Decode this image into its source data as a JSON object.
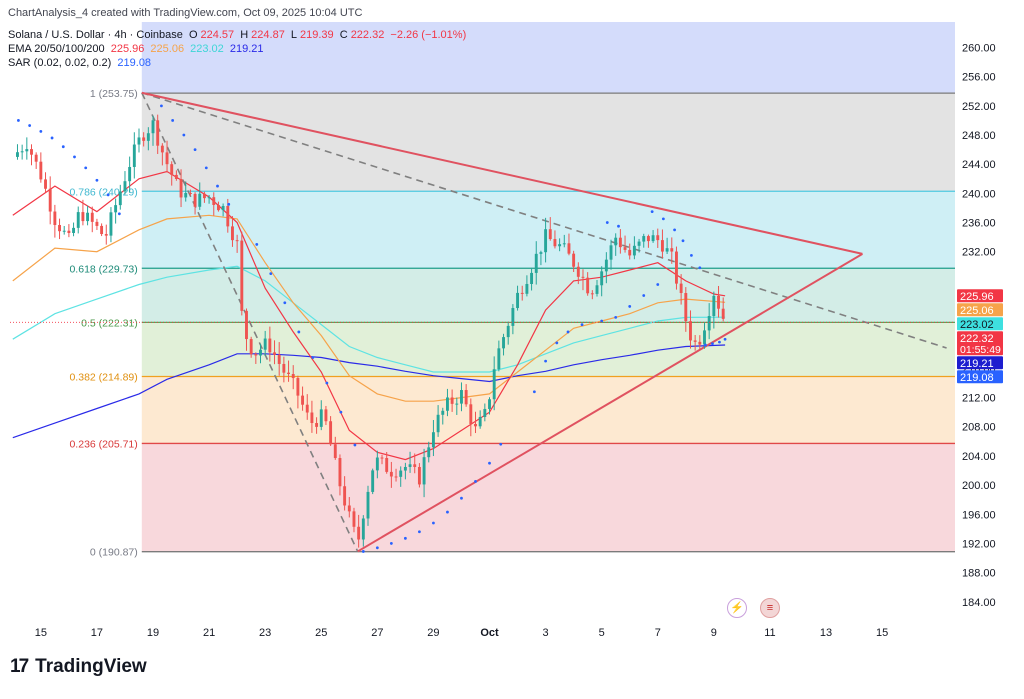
{
  "header": {
    "credit": "ChartAnalysis_4 created with TradingView.com, Oct 09, 2025 10:04 UTC",
    "symbol": "Solana / U.S. Dollar · 4h · Coinbase",
    "o_label": "O",
    "o_value": "224.57",
    "h_label": "H",
    "h_value": "224.87",
    "l_label": "L",
    "l_value": "219.39",
    "c_label": "C",
    "c_value": "222.32",
    "change": "−2.26 (−1.01%)",
    "ema_label": "EMA 20/50/100/200",
    "ema_values": [
      "225.96",
      "225.06",
      "223.02",
      "219.21"
    ],
    "sar_label": "SAR (0.02, 0.02, 0.2)",
    "sar_value": "219.08"
  },
  "colors": {
    "up": "#26a69a",
    "down": "#ef5350",
    "ema20": "#f23645",
    "ema50": "#f6a34a",
    "ema100": "#5ee3e3",
    "ema200": "#2a2ae8",
    "sar": "#2962ff",
    "triangle": "#e05260",
    "fib_dash": "#808080"
  },
  "fib_levels": [
    {
      "label": "1 (253.75)",
      "value": 253.75,
      "line": "#7b7b7b",
      "text": "#787b86"
    },
    {
      "label": "0.786 (240.29)",
      "value": 240.29,
      "line": "#4fc9e0",
      "text": "#40b8d0"
    },
    {
      "label": "0.618 (229.73)",
      "value": 229.73,
      "line": "#1f9e8a",
      "text": "#1c8a77"
    },
    {
      "label": "0.5 (222.31)",
      "value": 222.31,
      "line": "#5aa85a",
      "text": "#4c9a4c"
    },
    {
      "label": "0.382 (214.89)",
      "value": 214.89,
      "line": "#f0a020",
      "text": "#e09010"
    },
    {
      "label": "0.236 (205.71)",
      "value": 205.71,
      "line": "#e04848",
      "text": "#d83838"
    },
    {
      "label": "0 (190.87)",
      "value": 190.87,
      "line": "#7b7b7b",
      "text": "#787b86"
    }
  ],
  "fib_zones": [
    {
      "from": 253.75,
      "to": 263.5,
      "color": "#d4dcfb"
    },
    {
      "from": 240.29,
      "to": 253.75,
      "color": "#e3e3e3"
    },
    {
      "from": 229.73,
      "to": 240.29,
      "color": "#cfeff5"
    },
    {
      "from": 222.31,
      "to": 229.73,
      "color": "#d3ede7"
    },
    {
      "from": 214.89,
      "to": 222.31,
      "color": "#e1f0d8"
    },
    {
      "from": 205.71,
      "to": 214.89,
      "color": "#fde9d1"
    },
    {
      "from": 190.87,
      "to": 205.71,
      "color": "#f8d8dc"
    }
  ],
  "price_badges": [
    {
      "text": "225.96",
      "value": 225.96,
      "bg": "#f23645",
      "fg": "#ffffff"
    },
    {
      "text": "225.06",
      "value": 225.06,
      "bg": "#f6a34a",
      "fg": "#ffffff"
    },
    {
      "text": "223.02",
      "value": 223.02,
      "bg": "#3ee0e0",
      "fg": "#131722"
    },
    {
      "text": "222.32",
      "sub": "01:55:49",
      "value": 222.32,
      "bg": "#f23645",
      "fg": "#ffffff"
    },
    {
      "text": "219.21",
      "value": 219.21,
      "bg": "#1d1dcf",
      "fg": "#ffffff"
    },
    {
      "text": "219.08",
      "value": 219.08,
      "bg": "#2962ff",
      "fg": "#ffffff"
    }
  ],
  "chart_data": {
    "type": "candlestick",
    "title": "Solana / U.S. Dollar · 4h · Coinbase",
    "y_ticks": [
      260,
      256,
      252,
      248,
      244,
      240,
      236,
      232,
      228,
      224,
      220,
      216,
      212,
      208,
      204,
      200,
      196,
      192,
      188,
      184
    ],
    "y_tick_labels": [
      "260.00",
      "256.00",
      "252.00",
      "248.00",
      "244.00",
      "240.00",
      "236.00",
      "232.00",
      "",
      "",
      "",
      "216.00",
      "212.00",
      "208.00",
      "204.00",
      "200.00",
      "196.00",
      "192.00",
      "188.00",
      "184.00"
    ],
    "ylim": [
      181.5,
      263.5
    ],
    "x_ticks": [
      {
        "label": "15",
        "day": 15
      },
      {
        "label": "17",
        "day": 17
      },
      {
        "label": "19",
        "day": 19
      },
      {
        "label": "21",
        "day": 21
      },
      {
        "label": "23",
        "day": 23
      },
      {
        "label": "25",
        "day": 25
      },
      {
        "label": "27",
        "day": 27
      },
      {
        "label": "29",
        "day": 29
      },
      {
        "label": "Oct",
        "day": 31,
        "bold": true
      },
      {
        "label": "3",
        "day": 33
      },
      {
        "label": "5",
        "day": 35
      },
      {
        "label": "7",
        "day": 37
      },
      {
        "label": "9",
        "day": 39
      },
      {
        "label": "11",
        "day": 41
      },
      {
        "label": "13",
        "day": 43
      },
      {
        "label": "15",
        "day": 45
      }
    ],
    "xlim": [
      13.9,
      47.6
    ],
    "day_unit": "days counted from September 1 2025 (31 = October 1)",
    "close_path": [
      [
        14.0,
        245.0
      ],
      [
        14.5,
        247.0
      ],
      [
        15.0,
        242.5
      ],
      [
        15.5,
        236.5
      ],
      [
        16.0,
        233.5
      ],
      [
        16.4,
        237.5
      ],
      [
        16.8,
        236.0
      ],
      [
        17.3,
        234.0
      ],
      [
        17.8,
        240.0
      ],
      [
        18.2,
        244.5
      ],
      [
        18.6,
        248.0
      ],
      [
        19.0,
        249.5
      ],
      [
        19.4,
        245.0
      ],
      [
        19.9,
        240.5
      ],
      [
        20.4,
        239.0
      ],
      [
        21.0,
        239.5
      ],
      [
        21.5,
        238.0
      ],
      [
        22.0,
        233.0
      ],
      [
        22.2,
        221.5
      ],
      [
        22.6,
        218.0
      ],
      [
        23.1,
        219.5
      ],
      [
        23.6,
        216.0
      ],
      [
        24.1,
        213.0
      ],
      [
        24.6,
        208.5
      ],
      [
        25.1,
        209.5
      ],
      [
        25.6,
        201.0
      ],
      [
        26.0,
        195.5
      ],
      [
        26.3,
        192.0
      ],
      [
        26.6,
        198.5
      ],
      [
        26.9,
        203.5
      ],
      [
        27.5,
        202.0
      ],
      [
        28.0,
        202.5
      ],
      [
        28.5,
        201.0
      ],
      [
        29.0,
        208.0
      ],
      [
        29.5,
        211.0
      ],
      [
        30.0,
        212.5
      ],
      [
        30.5,
        207.5
      ],
      [
        30.9,
        210.0
      ],
      [
        31.2,
        217.0
      ],
      [
        31.6,
        221.5
      ],
      [
        32.0,
        226.0
      ],
      [
        32.5,
        230.0
      ],
      [
        33.0,
        234.0
      ],
      [
        33.6,
        232.5
      ],
      [
        34.1,
        230.0
      ],
      [
        34.6,
        226.5
      ],
      [
        35.0,
        229.5
      ],
      [
        35.5,
        234.0
      ],
      [
        36.0,
        231.5
      ],
      [
        36.6,
        234.0
      ],
      [
        37.1,
        233.5
      ],
      [
        37.5,
        231.0
      ],
      [
        37.8,
        226.0
      ],
      [
        38.1,
        221.0
      ],
      [
        38.4,
        219.0
      ],
      [
        38.7,
        222.5
      ],
      [
        39.0,
        226.5
      ],
      [
        39.4,
        222.32
      ]
    ],
    "sar_points": [
      [
        14.2,
        250.0
      ],
      [
        14.6,
        249.3
      ],
      [
        15.0,
        248.5
      ],
      [
        15.4,
        247.6
      ],
      [
        15.8,
        246.4
      ],
      [
        16.2,
        245.0
      ],
      [
        16.6,
        243.5
      ],
      [
        17.0,
        241.8
      ],
      [
        17.4,
        239.8
      ],
      [
        17.8,
        237.2
      ],
      [
        19.3,
        252.0
      ],
      [
        19.7,
        250.0
      ],
      [
        20.1,
        248.0
      ],
      [
        20.5,
        246.0
      ],
      [
        20.9,
        243.5
      ],
      [
        21.3,
        241.0
      ],
      [
        21.7,
        238.5
      ],
      [
        22.7,
        233.0
      ],
      [
        23.2,
        229.0
      ],
      [
        23.7,
        225.0
      ],
      [
        24.2,
        221.0
      ],
      [
        24.7,
        217.5
      ],
      [
        25.2,
        214.0
      ],
      [
        25.7,
        210.0
      ],
      [
        26.2,
        205.5
      ],
      [
        26.5,
        190.9
      ],
      [
        27.0,
        191.4
      ],
      [
        27.5,
        192.0
      ],
      [
        28.0,
        192.7
      ],
      [
        28.5,
        193.6
      ],
      [
        29.0,
        194.8
      ],
      [
        29.5,
        196.3
      ],
      [
        30.0,
        198.2
      ],
      [
        30.5,
        200.5
      ],
      [
        31.0,
        203.0
      ],
      [
        31.4,
        205.6
      ],
      [
        32.6,
        212.8
      ],
      [
        33.0,
        217.0
      ],
      [
        33.4,
        219.5
      ],
      [
        33.8,
        221.0
      ],
      [
        34.3,
        222.0
      ],
      [
        35.0,
        222.5
      ],
      [
        35.5,
        223.0
      ],
      [
        36.0,
        224.5
      ],
      [
        36.5,
        226.0
      ],
      [
        37.0,
        227.5
      ],
      [
        35.2,
        236.0
      ],
      [
        35.6,
        235.5
      ],
      [
        36.8,
        237.5
      ],
      [
        37.2,
        236.5
      ],
      [
        37.6,
        235.0
      ],
      [
        37.9,
        233.5
      ],
      [
        38.2,
        231.5
      ],
      [
        38.5,
        229.8
      ],
      [
        38.7,
        219.2
      ],
      [
        38.95,
        219.4
      ],
      [
        39.2,
        219.6
      ],
      [
        39.4,
        220.0
      ]
    ],
    "ema20": [
      [
        14.0,
        237.0
      ],
      [
        15.5,
        241.0
      ],
      [
        17.0,
        237.5
      ],
      [
        18.5,
        242.0
      ],
      [
        19.5,
        243.0
      ],
      [
        21.0,
        239.5
      ],
      [
        22.0,
        236.0
      ],
      [
        23.0,
        227.0
      ],
      [
        24.0,
        221.0
      ],
      [
        25.0,
        215.5
      ],
      [
        26.0,
        207.5
      ],
      [
        27.0,
        204.5
      ],
      [
        28.0,
        203.5
      ],
      [
        29.0,
        205.0
      ],
      [
        30.0,
        207.5
      ],
      [
        31.0,
        210.0
      ],
      [
        32.0,
        216.5
      ],
      [
        33.0,
        224.0
      ],
      [
        34.0,
        228.0
      ],
      [
        35.0,
        228.5
      ],
      [
        36.0,
        229.5
      ],
      [
        37.0,
        230.5
      ],
      [
        38.0,
        228.0
      ],
      [
        39.0,
        226.2
      ],
      [
        39.4,
        225.96
      ]
    ],
    "ema50": [
      [
        14.0,
        228.0
      ],
      [
        15.5,
        232.5
      ],
      [
        17.0,
        232.0
      ],
      [
        18.5,
        235.0
      ],
      [
        19.5,
        236.5
      ],
      [
        21.0,
        237.0
      ],
      [
        22.0,
        236.5
      ],
      [
        23.0,
        230.5
      ],
      [
        24.0,
        225.0
      ],
      [
        25.0,
        220.5
      ],
      [
        26.0,
        215.0
      ],
      [
        27.0,
        212.5
      ],
      [
        28.0,
        211.5
      ],
      [
        29.0,
        211.5
      ],
      [
        30.0,
        212.0
      ],
      [
        31.0,
        212.5
      ],
      [
        32.0,
        215.5
      ],
      [
        33.0,
        218.5
      ],
      [
        34.0,
        221.5
      ],
      [
        35.0,
        222.5
      ],
      [
        36.0,
        223.5
      ],
      [
        37.0,
        225.0
      ],
      [
        38.0,
        225.5
      ],
      [
        39.4,
        225.06
      ]
    ],
    "ema100": [
      [
        14.0,
        220.0
      ],
      [
        15.5,
        223.5
      ],
      [
        17.0,
        225.5
      ],
      [
        18.5,
        227.5
      ],
      [
        19.5,
        228.5
      ],
      [
        21.0,
        229.5
      ],
      [
        22.0,
        230.0
      ],
      [
        23.0,
        228.0
      ],
      [
        24.0,
        225.0
      ],
      [
        25.0,
        222.0
      ],
      [
        26.0,
        219.0
      ],
      [
        27.0,
        217.5
      ],
      [
        28.0,
        216.5
      ],
      [
        29.0,
        215.5
      ],
      [
        30.0,
        215.5
      ],
      [
        31.0,
        215.5
      ],
      [
        32.0,
        216.5
      ],
      [
        33.0,
        218.0
      ],
      [
        34.0,
        219.5
      ],
      [
        35.0,
        220.5
      ],
      [
        36.0,
        221.5
      ],
      [
        37.0,
        222.5
      ],
      [
        38.0,
        223.0
      ],
      [
        39.4,
        223.02
      ]
    ],
    "ema200": [
      [
        14.0,
        206.5
      ],
      [
        15.5,
        208.5
      ],
      [
        17.0,
        210.5
      ],
      [
        18.5,
        212.5
      ],
      [
        19.5,
        214.5
      ],
      [
        21.0,
        216.5
      ],
      [
        22.0,
        218.0
      ],
      [
        23.0,
        218.0
      ],
      [
        24.0,
        217.8
      ],
      [
        25.0,
        217.5
      ],
      [
        26.0,
        216.8
      ],
      [
        27.0,
        216.3
      ],
      [
        28.0,
        215.6
      ],
      [
        29.0,
        215.0
      ],
      [
        30.0,
        214.6
      ],
      [
        31.0,
        214.2
      ],
      [
        32.0,
        215.0
      ],
      [
        33.0,
        215.6
      ],
      [
        34.0,
        216.5
      ],
      [
        35.0,
        217.2
      ],
      [
        36.0,
        217.8
      ],
      [
        37.0,
        218.5
      ],
      [
        38.0,
        219.0
      ],
      [
        39.4,
        219.21
      ]
    ],
    "trendlines": [
      {
        "name": "upper",
        "from": [
          18.6,
          253.8
        ],
        "to": [
          44.3,
          231.7
        ]
      },
      {
        "name": "lower",
        "from": [
          26.3,
          190.9
        ],
        "to": [
          44.3,
          231.7
        ]
      }
    ],
    "dashed_lines": [
      {
        "from": [
          18.6,
          253.8
        ],
        "to": [
          47.3,
          218.8
        ]
      },
      {
        "from": [
          18.6,
          253.8
        ],
        "to": [
          26.3,
          190.9
        ]
      }
    ]
  }
}
